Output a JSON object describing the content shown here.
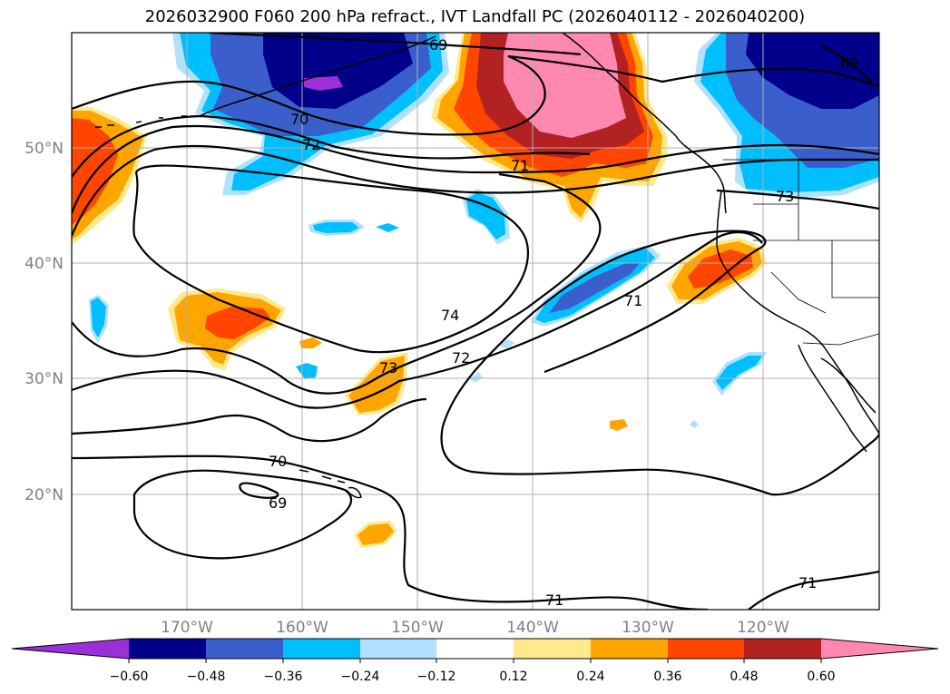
{
  "title": "2026032900 F060 200 hPa refract., IVT Landfall PC (2026040112 - 2026040200)",
  "longitude_labels": [
    "170°W",
    "160°W",
    "150°W",
    "140°W",
    "130°W",
    "120°W"
  ],
  "latitude_labels": [
    "50°N",
    "40°N",
    "30°N",
    "20°N"
  ],
  "contour_labels": [
    "69",
    "70",
    "72",
    "71",
    "73",
    "74",
    "72",
    "73",
    "71",
    "70",
    "69",
    "71",
    "71",
    "69"
  ],
  "colorbar": {
    "tick_labels": [
      "−0.60",
      "−0.48",
      "−0.36",
      "−0.24",
      "−0.12",
      "0.12",
      "0.24",
      "0.36",
      "0.48",
      "0.60"
    ],
    "colors": [
      "#9b30d8",
      "#00008b",
      "#3a5fcd",
      "#00bfff",
      "#b0e2ff",
      "#ffffff",
      "#ffe98c",
      "#ffa500",
      "#ff4500",
      "#b22222",
      "#ff88b0",
      "#ff88b0"
    ]
  },
  "colors": {
    "neg_strong": "#00008b",
    "neg_mid": "#3a5fcd",
    "neg_light": "#00bfff",
    "neg_pale": "#b0e2ff",
    "pos_pale": "#ffe98c",
    "pos_light": "#ffa500",
    "pos_mid": "#ff4500",
    "pos_strong": "#b22222",
    "pos_max": "#ff88b0",
    "extreme_neg": "#9b30d8"
  }
}
